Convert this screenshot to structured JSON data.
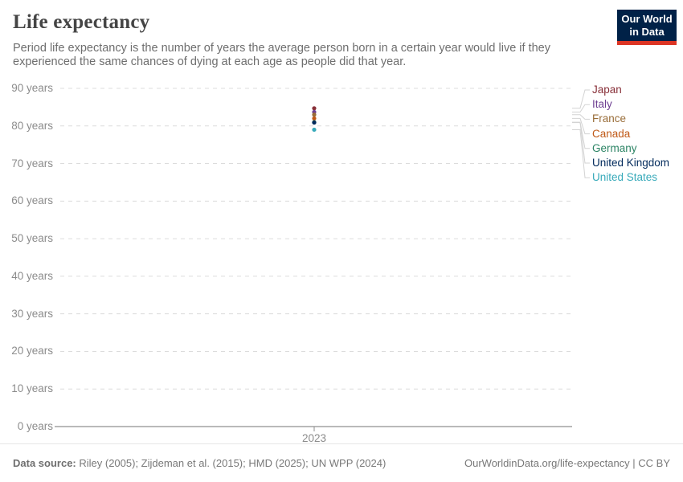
{
  "header": {
    "title": "Life expectancy",
    "subtitle": "Period life expectancy is the number of years the average person born in a certain year would live if they experienced the same chances of dying at each age as people did that year.",
    "logo": {
      "line1": "Our World",
      "line2": "in Data"
    }
  },
  "chart_data": {
    "type": "scatter",
    "title": "Life expectancy",
    "x": [
      2023
    ],
    "x_tick_label": "2023",
    "series": [
      {
        "name": "Japan",
        "color": "#883039",
        "values": [
          84.7
        ]
      },
      {
        "name": "Italy",
        "color": "#6D3E91",
        "values": [
          83.7
        ]
      },
      {
        "name": "France",
        "color": "#996D39",
        "values": [
          83.0
        ]
      },
      {
        "name": "Canada",
        "color": "#C05917",
        "values": [
          82.0
        ]
      },
      {
        "name": "Germany",
        "color": "#2C8465",
        "values": [
          81.0
        ]
      },
      {
        "name": "United Kingdom",
        "color": "#00295B",
        "values": [
          80.9
        ]
      },
      {
        "name": "United States",
        "color": "#38AABA",
        "values": [
          79.0
        ]
      }
    ],
    "y_axis": {
      "min": 0,
      "max": 90,
      "tick_step": 10,
      "tick_labels": [
        "0 years",
        "10 years",
        "20 years",
        "30 years",
        "40 years",
        "50 years",
        "60 years",
        "70 years",
        "80 years",
        "90 years"
      ]
    },
    "grid": "horizontal-dashed",
    "legend_position": "right",
    "grid_color": "#dcdcdc",
    "axis_color": "#8f8f8f",
    "leader_line_color": "#d3d3d3"
  },
  "footer": {
    "source_label": "Data source:",
    "source_text": " Riley (2005); Zijdeman et al. (2015); HMD (2025); UN WPP (2024)",
    "link_text": "OurWorldinData.org/life-expectancy | CC BY"
  }
}
